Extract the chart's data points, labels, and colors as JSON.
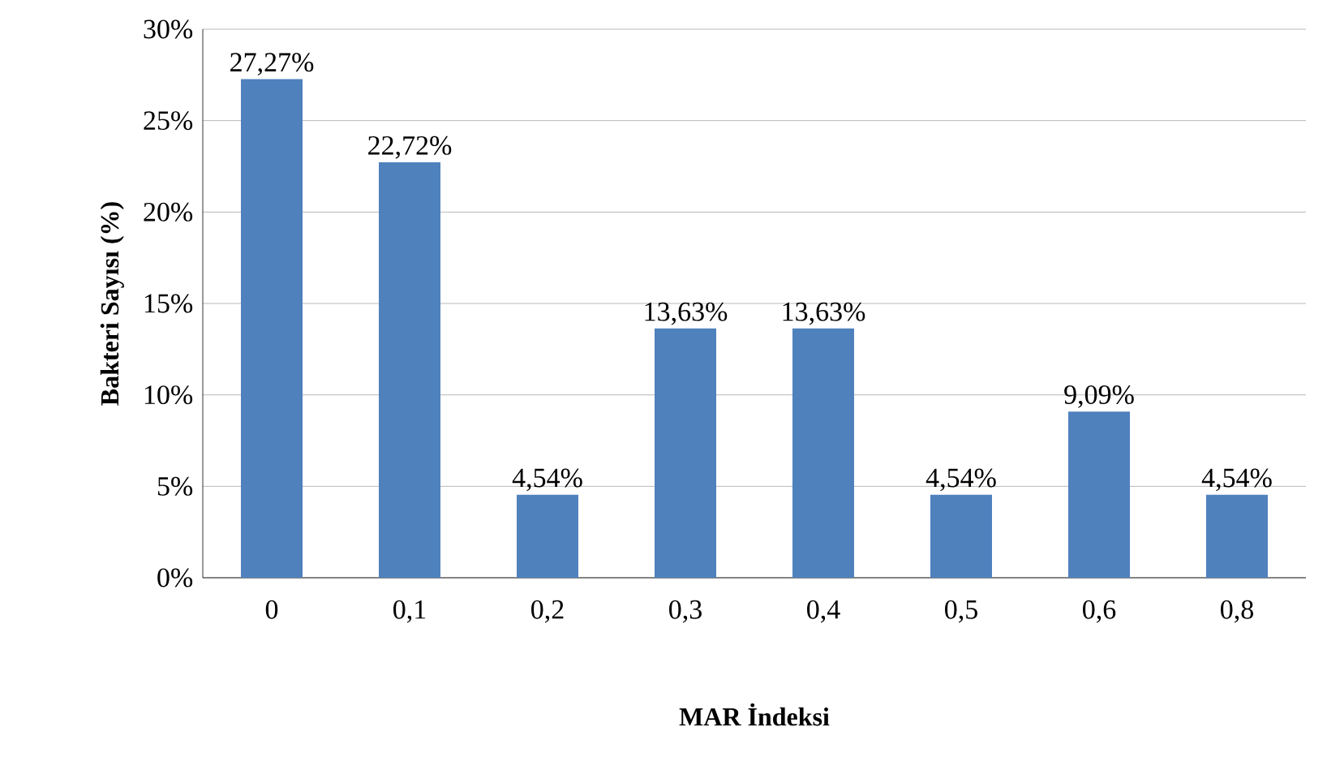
{
  "chart_data": {
    "type": "bar",
    "xlabel": "MAR İndeksi",
    "ylabel": "Bakteri Sayısı (%)",
    "categories": [
      "0",
      "0,1",
      "0,2",
      "0,3",
      "0,4",
      "0,5",
      "0,6",
      "0,8"
    ],
    "values": [
      27.27,
      22.72,
      4.54,
      13.63,
      13.63,
      4.54,
      9.09,
      4.54
    ],
    "value_labels": [
      "27,27%",
      "22,72%",
      "4,54%",
      "13,63%",
      "13,63%",
      "4,54%",
      "9,09%",
      "4,54%"
    ],
    "color": "#4f81bd",
    "ylim": [
      0,
      30
    ],
    "yticks": [
      {
        "value": 0,
        "label": "0%"
      },
      {
        "value": 5,
        "label": "5%"
      },
      {
        "value": 10,
        "label": "10%"
      },
      {
        "value": 15,
        "label": "15%"
      },
      {
        "value": 20,
        "label": "20%"
      },
      {
        "value": 25,
        "label": "25%"
      },
      {
        "value": 30,
        "label": "30%"
      }
    ],
    "grid": "y"
  }
}
